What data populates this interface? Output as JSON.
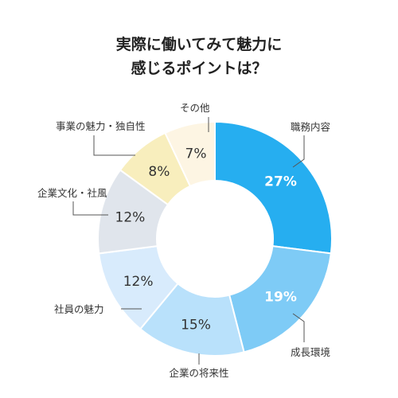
{
  "chart_data": {
    "type": "pie",
    "title_lines": [
      "実際に働いてみて魅力に",
      "感じるポイントは？"
    ],
    "categories": [
      "職務内容",
      "成長環境",
      "企業の将来性",
      "社員の魅力",
      "企業文化・社風",
      "事業の魅力・独自性",
      "その他"
    ],
    "values": [
      27,
      19,
      15,
      12,
      12,
      8,
      7
    ],
    "value_labels": [
      "27%",
      "19%",
      "15%",
      "12%",
      "12%",
      "8%",
      "7%"
    ],
    "colors": [
      "#26aef0",
      "#7ecbf6",
      "#b9e1fb",
      "#d8ebfc",
      "#e0e5ec",
      "#f8eebd",
      "#fdf5e3"
    ],
    "label_colors": [
      "#ffffff",
      "#ffffff",
      "#333333",
      "#333333",
      "#333333",
      "#333333",
      "#333333"
    ],
    "donut": true,
    "legend": "none"
  }
}
